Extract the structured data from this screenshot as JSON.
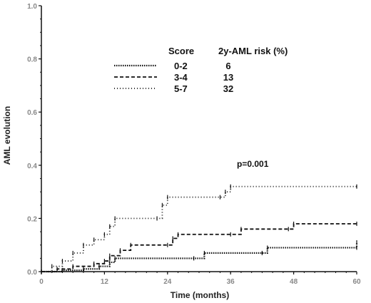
{
  "chart_data": {
    "type": "line",
    "title": "",
    "xlabel": "Time (months)",
    "ylabel": "AML evolution",
    "xlim": [
      0,
      60
    ],
    "ylim": [
      0,
      1.0
    ],
    "xticks": [
      0,
      12,
      24,
      36,
      48,
      60
    ],
    "xtick_labels": [
      "0",
      "12",
      "24",
      "36",
      "48",
      "60"
    ],
    "yticks": [
      0,
      0.2,
      0.4,
      0.6,
      0.8,
      1.0
    ],
    "ytick_labels": [
      "0.0",
      "0.2",
      "0.4",
      "0.6",
      "0.8",
      "1.0"
    ],
    "grid": false,
    "legend": {
      "placement": "top-center",
      "header_score": "Score",
      "header_risk": "2y-AML risk (%)"
    },
    "annotation": "p=0.001",
    "series": [
      {
        "name": "0-2",
        "risk": "6",
        "color": "#111111",
        "steps": [
          [
            0,
            0
          ],
          [
            4,
            0.005
          ],
          [
            8,
            0.01
          ],
          [
            11,
            0.02
          ],
          [
            13,
            0.035
          ],
          [
            14,
            0.05
          ],
          [
            29,
            0.05
          ],
          [
            31,
            0.07
          ],
          [
            42,
            0.07
          ],
          [
            43,
            0.09
          ],
          [
            60,
            0.09
          ],
          [
            60,
            0.11
          ]
        ]
      },
      {
        "name": "3-4",
        "risk": "13",
        "color": "#111111",
        "steps": [
          [
            0,
            0
          ],
          [
            3,
            0.01
          ],
          [
            6,
            0.02
          ],
          [
            10,
            0.03
          ],
          [
            12,
            0.04
          ],
          [
            13,
            0.06
          ],
          [
            15,
            0.08
          ],
          [
            17,
            0.1
          ],
          [
            24,
            0.1
          ],
          [
            25,
            0.125
          ],
          [
            26,
            0.14
          ],
          [
            36,
            0.14
          ],
          [
            38,
            0.16
          ],
          [
            47,
            0.16
          ],
          [
            48,
            0.18
          ],
          [
            60,
            0.18
          ]
        ]
      },
      {
        "name": "5-7",
        "risk": "32",
        "color": "#111111",
        "steps": [
          [
            0,
            0
          ],
          [
            2,
            0.02
          ],
          [
            4,
            0.04
          ],
          [
            6,
            0.07
          ],
          [
            8,
            0.1
          ],
          [
            10,
            0.12
          ],
          [
            12,
            0.14
          ],
          [
            13,
            0.17
          ],
          [
            14,
            0.2
          ],
          [
            22,
            0.2
          ],
          [
            23,
            0.25
          ],
          [
            24,
            0.28
          ],
          [
            34,
            0.28
          ],
          [
            35,
            0.3
          ],
          [
            36,
            0.32
          ],
          [
            60,
            0.32
          ]
        ]
      }
    ]
  }
}
